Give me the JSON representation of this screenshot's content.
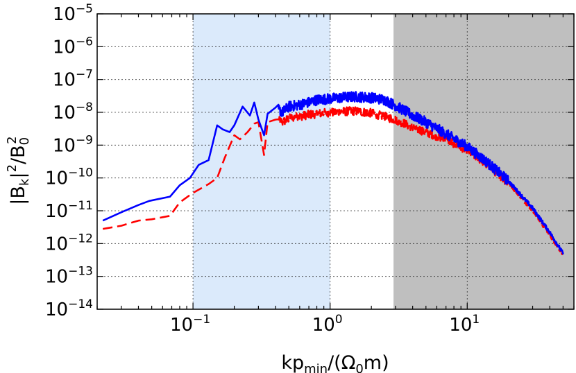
{
  "chart_data": {
    "type": "line",
    "title": "",
    "x_scale": "log",
    "y_scale": "log",
    "xlim": [
      0.02,
      60
    ],
    "ylim": [
      1e-14,
      1e-05
    ],
    "grid": true,
    "xlabel": {
      "pre": "kp",
      "sub": "min",
      "mid": "/(Ω",
      "sub2": "0",
      "post": "m)"
    },
    "ylabel": {
      "p1": "|B",
      "sub1": "k",
      "p2": "|",
      "sup1": "2",
      "p3": "/B",
      "sub2": "0",
      "sup2": "2"
    },
    "x_ticks": [
      {
        "value": 0.1,
        "base": "10",
        "exp": "−1"
      },
      {
        "value": 1,
        "base": "10",
        "exp": "0"
      },
      {
        "value": 10,
        "base": "10",
        "exp": "1"
      }
    ],
    "y_ticks": [
      {
        "value": 1e-14,
        "base": "10",
        "exp": "−14"
      },
      {
        "value": 1e-13,
        "base": "10",
        "exp": "−13"
      },
      {
        "value": 1e-12,
        "base": "10",
        "exp": "−12"
      },
      {
        "value": 1e-11,
        "base": "10",
        "exp": "−11"
      },
      {
        "value": 1e-10,
        "base": "10",
        "exp": "−10"
      },
      {
        "value": 1e-09,
        "base": "10",
        "exp": "−9"
      },
      {
        "value": 1e-08,
        "base": "10",
        "exp": "−8"
      },
      {
        "value": 1e-07,
        "base": "10",
        "exp": "−7"
      },
      {
        "value": 1e-06,
        "base": "10",
        "exp": "−6"
      },
      {
        "value": 1e-05,
        "base": "10",
        "exp": "−5"
      }
    ],
    "shaded_regions": [
      {
        "name": "light-blue-band",
        "x_range": [
          0.1,
          1.0
        ],
        "color": "#dbeafb"
      },
      {
        "name": "gray-band",
        "x_range": [
          2.9,
          60
        ],
        "color": "#bfbfbf"
      }
    ],
    "series": [
      {
        "name": "blue-solid",
        "color": "#0000ff",
        "style": "solid",
        "noise_log10": 0.16,
        "x": [
          0.022,
          0.03,
          0.04,
          0.048,
          0.068,
          0.08,
          0.095,
          0.11,
          0.13,
          0.15,
          0.165,
          0.185,
          0.2,
          0.23,
          0.26,
          0.28,
          0.3,
          0.33,
          0.35,
          0.4,
          0.45,
          0.5,
          0.6,
          0.7,
          0.8,
          1.0,
          1.2,
          1.5,
          2.0,
          2.5,
          3.0,
          4.0,
          5.0,
          7.0,
          10.0,
          14.0,
          20.0,
          30.0,
          40.0,
          50.0
        ],
        "y": [
          5e-12,
          9e-12,
          1.5e-11,
          2e-11,
          2.7e-11,
          6e-11,
          1e-10,
          2.5e-10,
          3.5e-10,
          4e-09,
          3e-09,
          2.5e-09,
          4e-09,
          1.5e-08,
          8e-09,
          2e-08,
          6e-09,
          2e-09,
          9e-09,
          1.4e-08,
          1e-08,
          1.5e-08,
          1.7e-08,
          2e-08,
          2.4e-08,
          2.6e-08,
          2.8e-08,
          3e-08,
          2.8e-08,
          2.4e-08,
          1.6e-08,
          8e-09,
          5e-09,
          2.2e-09,
          9e-10,
          3e-10,
          8e-11,
          1.2e-11,
          2.2e-12,
          5e-13
        ]
      },
      {
        "name": "red-dashed",
        "color": "#ff0000",
        "style": "dashed",
        "noise_log10": 0.13,
        "x": [
          0.022,
          0.03,
          0.04,
          0.05,
          0.068,
          0.08,
          0.1,
          0.13,
          0.15,
          0.17,
          0.2,
          0.22,
          0.25,
          0.28,
          0.3,
          0.33,
          0.35,
          0.4,
          0.45,
          0.5,
          0.6,
          0.7,
          0.8,
          1.0,
          1.5,
          2.0,
          3.0,
          4.0,
          5.0,
          7.0,
          10.0,
          14.0,
          20.0,
          30.0,
          40.0,
          50.0
        ],
        "y": [
          2.8e-12,
          3.5e-12,
          5e-12,
          5.5e-12,
          7e-12,
          1.8e-11,
          3.5e-11,
          6.5e-11,
          1e-10,
          4e-10,
          2e-09,
          1.5e-09,
          2.5e-09,
          4.5e-09,
          5e-09,
          5e-10,
          5e-09,
          6e-09,
          5e-09,
          6.5e-09,
          7.5e-09,
          8.5e-09,
          9e-09,
          1e-08,
          1.1e-08,
          9.5e-09,
          6e-09,
          3.5e-09,
          2.5e-09,
          1.5e-09,
          7e-10,
          2.5e-10,
          7e-11,
          1e-11,
          1.8e-12,
          4.5e-13
        ]
      }
    ]
  }
}
